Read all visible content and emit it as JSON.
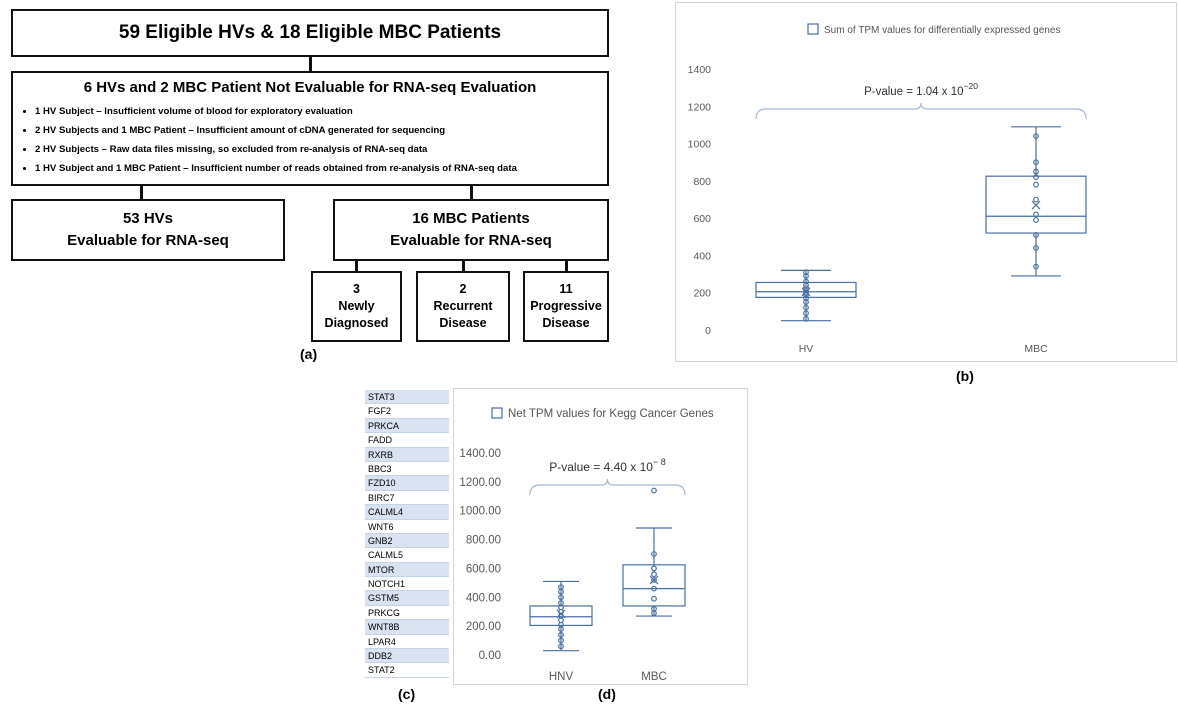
{
  "flowchart": {
    "top": "59 Eligible HVs & 18 Eligible MBC Patients",
    "middle_header": "6 HVs and 2 MBC Patient Not Evaluable for RNA-seq Evaluation",
    "bullets": [
      "1 HV Subject – Insufficient  volume of blood for exploratory evaluation",
      "2 HV Subjects and 1 MBC Patient – Insufficient amount of cDNA generated for sequencing",
      "2 HV Subjects – Raw data files missing, so excluded from re-analysis of RNA-seq data",
      "1 HV Subject and 1 MBC Patient – Insufficient number of reads obtained from re-analysis of RNA-seq data"
    ],
    "hv_line1": "53 HVs",
    "hv_line2": "Evaluable for RNA-seq",
    "mbc_line1": "16 MBC Patients",
    "mbc_line2": "Evaluable for RNA-seq",
    "sub": [
      {
        "count": "3",
        "line1": "Newly",
        "line2": "Diagnosed"
      },
      {
        "count": "2",
        "line1": "Recurrent",
        "line2": "Disease"
      },
      {
        "count": "11",
        "line1": "Progressive",
        "line2": "Disease"
      }
    ]
  },
  "labels": {
    "a": "(a)",
    "b": "(b)",
    "c": "(c)",
    "d": "(d)"
  },
  "genes": [
    "STAT3",
    "FGF2",
    "PRKCA",
    "FADD",
    "RXRB",
    "BBC3",
    "FZD10",
    "BIRC7",
    "CALML4",
    "WNT6",
    "GNB2",
    "CALML5",
    "MTOR",
    "NOTCH1",
    "GSTM5",
    "PRKCG",
    "WNT8B",
    "LPAR4",
    "DDB2",
    "STAT2"
  ],
  "chart_data": [
    {
      "type": "box",
      "title": "Sum of TPM values for  differentially expressed genes",
      "categories": [
        "HV",
        "MBC"
      ],
      "ylim": [
        0,
        1400
      ],
      "yticks": [
        "0",
        "200",
        "400",
        "600",
        "800",
        "1000",
        "1200",
        "1400"
      ],
      "grid": false,
      "annotation": {
        "text": "P-value = 1.04  x 10",
        "exponent": "−20"
      },
      "series": [
        {
          "category": "HV",
          "min": 50,
          "q1": 175,
          "median": 205,
          "q3": 255,
          "max": 320,
          "mean": 205,
          "points": [
            60,
            90,
            120,
            150,
            170,
            190,
            200,
            210,
            225,
            240,
            260,
            290,
            310
          ]
        },
        {
          "category": "MBC",
          "min": 290,
          "q1": 520,
          "median": 610,
          "q3": 825,
          "max": 1090,
          "mean": 670,
          "points": [
            340,
            440,
            510,
            590,
            620,
            700,
            780,
            820,
            850,
            900,
            1040
          ]
        }
      ],
      "color": "#4a6fa5"
    },
    {
      "type": "box",
      "title": "Net TPM values for Kegg Cancer Genes",
      "categories": [
        "HNV",
        "MBC"
      ],
      "ylim": [
        0,
        1400
      ],
      "yticks": [
        "0.00",
        "200.00",
        "400.00",
        "600.00",
        "800.00",
        "1000.00",
        "1200.00",
        "1400.00"
      ],
      "grid": false,
      "annotation": {
        "text": "P-value = 4.40  x 10",
        "exponent": "− 8"
      },
      "series": [
        {
          "category": "HNV",
          "min": 30,
          "q1": 205,
          "median": 265,
          "q3": 340,
          "max": 510,
          "mean": 285,
          "points": [
            60,
            100,
            140,
            180,
            210,
            240,
            270,
            300,
            330,
            360,
            400,
            440,
            470
          ]
        },
        {
          "category": "MBC",
          "min": 270,
          "q1": 340,
          "median": 460,
          "q3": 625,
          "max": 880,
          "mean": 520,
          "points": [
            290,
            320,
            390,
            460,
            520,
            560,
            600,
            700,
            1140
          ]
        }
      ],
      "color": "#4a6fa5"
    }
  ]
}
